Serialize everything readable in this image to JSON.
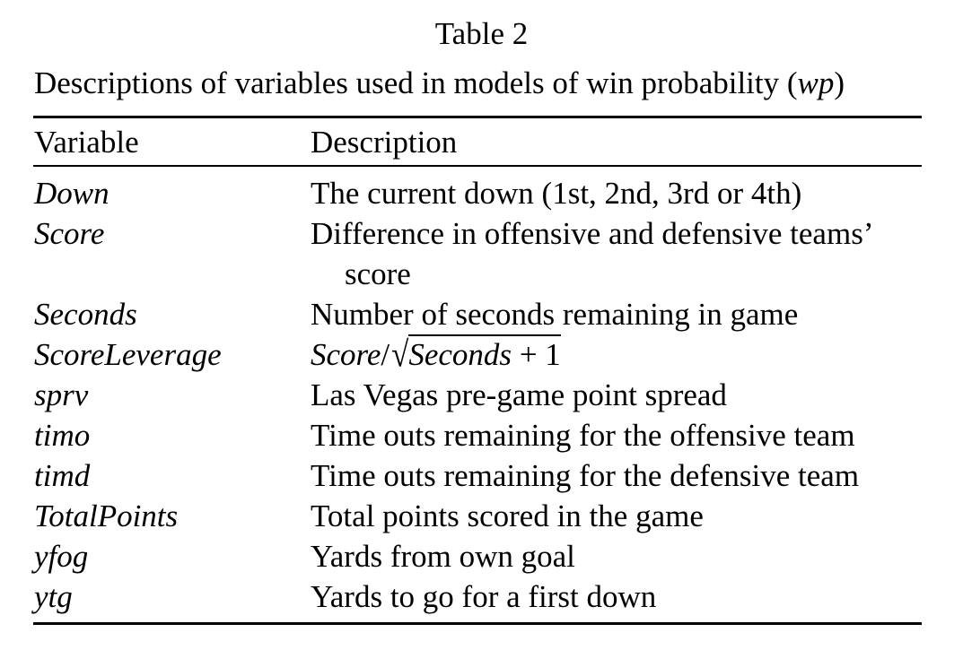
{
  "table_title": "Table 2",
  "caption": {
    "text": "Descriptions of variables used in models of win probability (",
    "symbol": "wp",
    "close": ")"
  },
  "headers": {
    "variable": "Variable",
    "description": "Description"
  },
  "rows": [
    {
      "variable": "Down",
      "description": [
        "The current down (1st, 2nd, 3rd or 4th)"
      ]
    },
    {
      "variable": "Score",
      "description": [
        "Difference in offensive and defensive teams’",
        "score"
      ]
    },
    {
      "variable": "Seconds",
      "description": [
        "Number of seconds remaining in game"
      ]
    },
    {
      "variable": "ScoreLeverage",
      "formula": {
        "numerator": "Score",
        "slash": "/",
        "sqrt_var": "Seconds",
        "plus": " + 1"
      }
    },
    {
      "variable": "sprv",
      "description": [
        "Las Vegas pre-game point spread"
      ]
    },
    {
      "variable": "timo",
      "description": [
        "Time outs remaining for the offensive team"
      ]
    },
    {
      "variable": "timd",
      "description": [
        "Time outs remaining for the defensive team"
      ]
    },
    {
      "variable": "TotalPoints",
      "description": [
        "Total points scored in the game"
      ]
    },
    {
      "variable": "yfog",
      "description": [
        "Yards from own goal"
      ]
    },
    {
      "variable": "ytg",
      "description": [
        "Yards to go for a first down"
      ]
    }
  ]
}
